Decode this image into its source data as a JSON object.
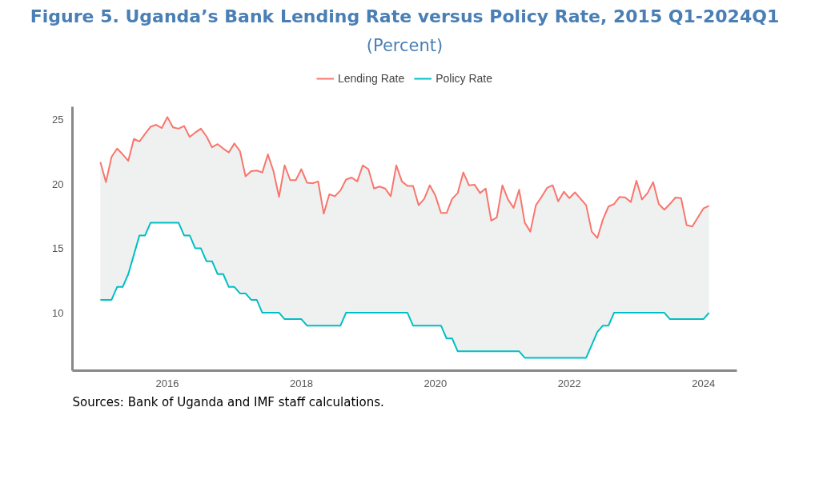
{
  "chart_data": {
    "type": "line",
    "title": "Figure 5. Uganda’s Bank Lending Rate versus Policy Rate, 2015 Q1-2024Q1",
    "subtitle": "(Percent)",
    "annotations": [
      "Sources: Bank of Uganda and IMF staff calculations."
    ],
    "x": [
      "2015-01",
      "2015-02",
      "2015-03",
      "2015-04",
      "2015-05",
      "2015-06",
      "2015-07",
      "2015-08",
      "2015-09",
      "2015-10",
      "2015-11",
      "2015-12",
      "2016-01",
      "2016-02",
      "2016-03",
      "2016-04",
      "2016-05",
      "2016-06",
      "2016-07",
      "2016-08",
      "2016-09",
      "2016-10",
      "2016-11",
      "2016-12",
      "2017-01",
      "2017-02",
      "2017-03",
      "2017-04",
      "2017-05",
      "2017-06",
      "2017-07",
      "2017-08",
      "2017-09",
      "2017-10",
      "2017-11",
      "2017-12",
      "2018-01",
      "2018-02",
      "2018-03",
      "2018-04",
      "2018-05",
      "2018-06",
      "2018-07",
      "2018-08",
      "2018-09",
      "2018-10",
      "2018-11",
      "2018-12",
      "2019-01",
      "2019-02",
      "2019-03",
      "2019-04",
      "2019-05",
      "2019-06",
      "2019-07",
      "2019-08",
      "2019-09",
      "2019-10",
      "2019-11",
      "2019-12",
      "2020-01",
      "2020-02",
      "2020-03",
      "2020-04",
      "2020-05",
      "2020-06",
      "2020-07",
      "2020-08",
      "2020-09",
      "2020-10",
      "2020-11",
      "2020-12",
      "2021-01",
      "2021-02",
      "2021-03",
      "2021-04",
      "2021-05",
      "2021-06",
      "2021-07",
      "2021-08",
      "2021-09",
      "2021-10",
      "2021-11",
      "2021-12",
      "2022-01",
      "2022-02",
      "2022-03",
      "2022-04",
      "2022-05",
      "2022-06",
      "2022-07",
      "2022-08",
      "2022-09",
      "2022-10",
      "2022-11",
      "2022-12",
      "2023-01",
      "2023-02",
      "2023-03",
      "2023-04",
      "2023-05",
      "2023-06",
      "2023-07",
      "2023-08",
      "2023-09",
      "2023-10",
      "2023-11",
      "2023-12",
      "2024-01",
      "2024-02"
    ],
    "series": [
      {
        "name": "Lending Rate",
        "color": "#f8766d",
        "values": [
          21.7,
          20.15,
          22.1,
          22.75,
          22.3,
          21.8,
          23.5,
          23.3,
          23.9,
          24.45,
          24.6,
          24.35,
          25.2,
          24.4,
          24.3,
          24.5,
          23.65,
          24.0,
          24.3,
          23.7,
          22.85,
          23.1,
          22.75,
          22.45,
          23.15,
          22.55,
          20.6,
          21.0,
          21.05,
          20.9,
          22.3,
          21.0,
          19.0,
          21.45,
          20.3,
          20.3,
          21.15,
          20.1,
          20.05,
          20.2,
          17.7,
          19.2,
          19.05,
          19.5,
          20.35,
          20.5,
          20.2,
          21.45,
          21.15,
          19.65,
          19.8,
          19.65,
          19.05,
          21.45,
          20.2,
          19.85,
          19.85,
          18.35,
          18.85,
          19.9,
          19.1,
          17.75,
          17.75,
          18.85,
          19.3,
          20.9,
          19.9,
          19.95,
          19.3,
          19.65,
          17.15,
          17.4,
          19.9,
          18.8,
          18.15,
          19.55,
          17.0,
          16.3,
          18.35,
          19.0,
          19.7,
          19.9,
          18.65,
          19.4,
          18.9,
          19.35,
          18.85,
          18.35,
          16.3,
          15.8,
          17.25,
          18.25,
          18.45,
          19.0,
          18.95,
          18.6,
          20.25,
          18.8,
          19.3,
          20.15,
          18.45,
          18.0,
          18.45,
          18.95,
          18.9,
          16.8,
          16.7,
          17.4,
          18.1,
          18.3
        ],
        "lower": [
          11,
          11,
          11,
          12,
          12,
          13,
          14.5,
          16,
          16,
          17,
          17,
          17,
          17,
          17,
          17,
          16,
          16,
          15,
          15,
          14,
          14,
          13,
          13,
          12,
          12,
          11.5,
          11.5,
          11,
          11,
          10,
          10,
          10,
          10,
          9.5,
          9.5,
          9.5,
          9.5,
          9,
          9,
          9,
          9,
          9,
          9,
          9,
          10,
          10,
          10,
          10,
          10,
          10,
          10,
          10,
          10,
          10,
          10,
          10,
          9,
          9,
          9,
          9,
          9,
          9,
          8,
          8,
          7,
          7,
          7,
          7,
          7,
          7,
          7,
          7,
          7,
          7,
          7,
          7,
          6.5,
          6.5,
          6.5,
          6.5,
          6.5,
          6.5,
          6.5,
          6.5,
          6.5,
          6.5,
          6.5,
          6.5,
          7.5,
          8.5,
          9,
          9,
          10,
          10,
          10,
          10,
          10,
          10,
          10,
          10,
          10,
          10,
          9.5,
          9.5,
          9.5,
          9.5,
          9.5,
          9.5,
          9.5,
          10
        ],
        "upper": [
          21.7,
          20.15,
          22.1,
          22.75,
          22.3,
          21.8,
          23.5,
          23.3,
          23.9,
          24.45,
          24.6,
          24.35,
          25.2,
          24.4,
          24.3,
          24.5,
          23.65,
          24.0,
          24.3,
          23.7,
          22.85,
          23.1,
          22.75,
          22.45,
          23.15,
          22.55,
          20.6,
          21.0,
          21.05,
          20.9,
          22.3,
          21.0,
          19.0,
          21.45,
          20.3,
          20.3,
          21.15,
          20.1,
          20.05,
          20.2,
          17.7,
          19.2,
          19.05,
          19.5,
          20.35,
          20.5,
          20.2,
          21.45,
          21.15,
          19.65,
          19.8,
          19.65,
          19.05,
          21.45,
          20.2,
          19.85,
          19.85,
          18.35,
          18.85,
          19.9,
          19.1,
          17.75,
          17.75,
          18.85,
          19.3,
          20.9,
          19.9,
          19.95,
          19.3,
          19.65,
          17.15,
          17.4,
          19.9,
          18.8,
          18.15,
          19.55,
          17.0,
          16.3,
          18.35,
          19.0,
          19.7,
          19.9,
          18.65,
          19.4,
          18.9,
          19.35,
          18.85,
          18.35,
          16.3,
          15.8,
          17.25,
          18.25,
          18.45,
          19.0,
          18.95,
          18.6,
          20.25,
          18.8,
          19.3,
          20.15,
          18.45,
          18.0,
          18.45,
          18.95,
          18.9,
          16.8,
          16.7,
          17.4,
          18.1,
          18.3
        ]
      },
      {
        "name": "Policy Rate",
        "color": "#00bfc4",
        "values": [
          11,
          11,
          11,
          12,
          12,
          13,
          14.5,
          16,
          16,
          17,
          17,
          17,
          17,
          17,
          17,
          16,
          16,
          15,
          15,
          14,
          14,
          13,
          13,
          12,
          12,
          11.5,
          11.5,
          11,
          11,
          10,
          10,
          10,
          10,
          9.5,
          9.5,
          9.5,
          9.5,
          9,
          9,
          9,
          9,
          9,
          9,
          9,
          10,
          10,
          10,
          10,
          10,
          10,
          10,
          10,
          10,
          10,
          10,
          10,
          9,
          9,
          9,
          9,
          9,
          9,
          8,
          8,
          7,
          7,
          7,
          7,
          7,
          7,
          7,
          7,
          7,
          7,
          7,
          7,
          6.5,
          6.5,
          6.5,
          6.5,
          6.5,
          6.5,
          6.5,
          6.5,
          6.5,
          6.5,
          6.5,
          6.5,
          7.5,
          8.5,
          9,
          9,
          10,
          10,
          10,
          10,
          10,
          10,
          10,
          10,
          10,
          10,
          9.5,
          9.5,
          9.5,
          9.5,
          9.5,
          9.5,
          9.5,
          10
        ]
      }
    ],
    "xlim": [
      "2014-08",
      "2024-07"
    ],
    "xticks": [
      "2016",
      "2018",
      "2020",
      "2022",
      "2024"
    ],
    "ylim": [
      5.5,
      26
    ],
    "yticks": [
      10,
      15,
      20,
      25
    ],
    "grid": false,
    "legend": "top",
    "marker": "none",
    "line_style": "solid"
  }
}
